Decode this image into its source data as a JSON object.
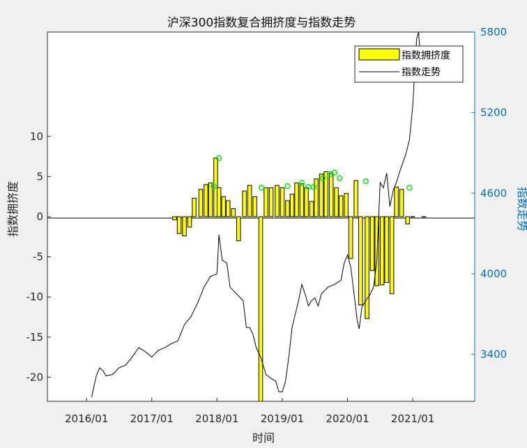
{
  "chart_data": {
    "type": "bar+line",
    "title": "沪深300指数复合拥挤度与指数走势",
    "xlabel": "时间",
    "ylabel_left": "指数拥挤度",
    "ylabel_right": "指数走势",
    "x_ticks": [
      "2016/01",
      "2017/01",
      "2018/01",
      "2019/01",
      "2020/01",
      "2021/01"
    ],
    "x_tick_values": [
      2016.0,
      2017.0,
      2018.0,
      2019.0,
      2020.0,
      2021.0
    ],
    "xlim": [
      2015.4,
      2021.95
    ],
    "ylim_left": [
      -23,
      23
    ],
    "yticks_left": [
      -20,
      -15,
      -10,
      -5,
      0,
      5,
      10
    ],
    "ylim_right": [
      3050,
      5800
    ],
    "yticks_right": [
      3400,
      4000,
      4600,
      5200,
      5800
    ],
    "legend": {
      "position": "top-right",
      "entries": [
        "指数拥挤度",
        "指数走势"
      ]
    },
    "colors": {
      "bar_fill": "#ffff00",
      "bar_edge": "#000000",
      "line": "#000000",
      "marker": "#00ee00",
      "right_axis": "#0072bd",
      "left_axis": "#262626"
    },
    "crowding_bars": {
      "x": [
        2017.35,
        2017.42,
        2017.5,
        2017.58,
        2017.65,
        2017.75,
        2017.83,
        2017.9,
        2017.98,
        2018.03,
        2018.1,
        2018.17,
        2018.25,
        2018.33,
        2018.42,
        2018.5,
        2018.58,
        2018.67,
        2018.75,
        2018.83,
        2018.92,
        2019.0,
        2019.08,
        2019.15,
        2019.22,
        2019.3,
        2019.37,
        2019.45,
        2019.52,
        2019.6,
        2019.67,
        2019.75,
        2019.83,
        2019.9,
        2019.98,
        2020.05,
        2020.13,
        2020.2,
        2020.3,
        2020.38,
        2020.45,
        2020.53,
        2020.6,
        2020.68,
        2020.75,
        2020.83,
        2020.92,
        2021.0,
        2021.17
      ],
      "values": [
        -0.4,
        -2.1,
        -2.4,
        -1.3,
        2.3,
        3.4,
        4.0,
        4.2,
        7.3,
        3.6,
        2.5,
        2.0,
        1.0,
        -3.0,
        3.2,
        3.9,
        2.5,
        -23,
        3.6,
        3.6,
        3.9,
        3.6,
        2.0,
        2.8,
        4.2,
        4.1,
        3.6,
        1.9,
        4.7,
        5.3,
        5.6,
        5.4,
        3.6,
        2.6,
        2.9,
        -5.2,
        4.5,
        -11.0,
        -12.7,
        -6.7,
        -8.6,
        -8.5,
        -8.2,
        -9.6,
        3.7,
        3.4,
        -0.9,
        0,
        0
      ],
      "signal_markers": {
        "x": [
          2017.95,
          2018.03,
          2018.68,
          2019.08,
          2019.3,
          2019.4,
          2019.48,
          2019.62,
          2019.73,
          2019.8,
          2019.88,
          2020.28,
          2020.95
        ],
        "y": [
          3.8,
          7.3,
          3.6,
          3.8,
          4.2,
          3.7,
          3.7,
          4.8,
          5.3,
          5.5,
          4.8,
          4.4,
          3.6
        ]
      }
    },
    "index_line": {
      "x": [
        2016.08,
        2016.1,
        2016.15,
        2016.2,
        2016.25,
        2016.3,
        2016.4,
        2016.5,
        2016.6,
        2016.7,
        2016.8,
        2016.9,
        2017.0,
        2017.1,
        2017.2,
        2017.3,
        2017.4,
        2017.5,
        2017.6,
        2017.7,
        2017.8,
        2017.9,
        2018.0,
        2018.03,
        2018.08,
        2018.15,
        2018.2,
        2018.3,
        2018.4,
        2018.45,
        2018.5,
        2018.55,
        2018.6,
        2018.67,
        2018.75,
        2018.83,
        2018.9,
        2018.95,
        2019.0,
        2019.05,
        2019.1,
        2019.15,
        2019.2,
        2019.25,
        2019.3,
        2019.35,
        2019.4,
        2019.45,
        2019.5,
        2019.55,
        2019.6,
        2019.7,
        2019.8,
        2019.9,
        2019.95,
        2020.0,
        2020.05,
        2020.1,
        2020.15,
        2020.18,
        2020.22,
        2020.28,
        2020.35,
        2020.4,
        2020.45,
        2020.5,
        2020.55,
        2020.6,
        2020.65,
        2020.7,
        2020.75,
        2020.8,
        2020.85,
        2020.9,
        2020.95,
        2021.0,
        2021.03,
        2021.06,
        2021.09,
        2021.12,
        2021.15
      ],
      "y": [
        3080,
        3130,
        3240,
        3300,
        3280,
        3240,
        3250,
        3300,
        3320,
        3380,
        3450,
        3420,
        3380,
        3430,
        3450,
        3480,
        3500,
        3620,
        3680,
        3780,
        3900,
        3980,
        4000,
        4290,
        4100,
        4080,
        3900,
        3850,
        3800,
        3600,
        3600,
        3550,
        3450,
        3380,
        3250,
        3220,
        3200,
        3120,
        3120,
        3200,
        3380,
        3600,
        3700,
        3800,
        3920,
        3850,
        3760,
        3800,
        3820,
        3760,
        3850,
        3900,
        3920,
        3950,
        4080,
        4140,
        4050,
        3850,
        3650,
        3590,
        3750,
        3800,
        3850,
        3900,
        4100,
        4680,
        4640,
        4750,
        4500,
        4620,
        4680,
        4760,
        4830,
        4900,
        5000,
        5250,
        5500,
        5750,
        5800,
        5600,
        5500
      ]
    }
  }
}
